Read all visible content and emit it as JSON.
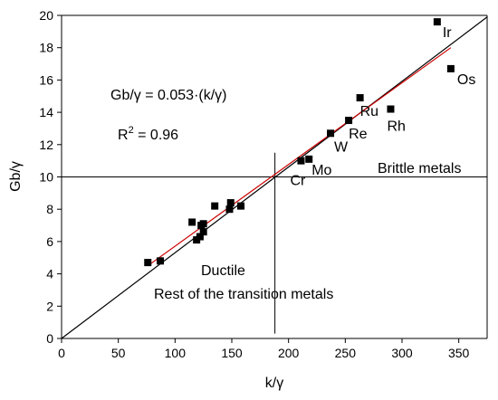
{
  "chart_data": {
    "type": "scatter",
    "xlabel": "k/γ",
    "ylabel": "Gb/γ",
    "xlim": [
      0,
      375
    ],
    "ylim": [
      0,
      20
    ],
    "xticks": [
      0,
      50,
      100,
      150,
      200,
      250,
      300,
      350
    ],
    "yticks": [
      0,
      2,
      4,
      6,
      8,
      10,
      12,
      14,
      16,
      18,
      20
    ],
    "grid": false,
    "points": [
      {
        "x": 76,
        "y": 4.7
      },
      {
        "x": 87,
        "y": 4.8
      },
      {
        "x": 115,
        "y": 7.2
      },
      {
        "x": 119,
        "y": 6.1
      },
      {
        "x": 122,
        "y": 6.3
      },
      {
        "x": 123,
        "y": 7.0
      },
      {
        "x": 125,
        "y": 6.6
      },
      {
        "x": 125,
        "y": 7.1
      },
      {
        "x": 135,
        "y": 8.2
      },
      {
        "x": 148,
        "y": 8.0
      },
      {
        "x": 149,
        "y": 8.4
      },
      {
        "x": 158,
        "y": 8.2
      },
      {
        "x": 211,
        "y": 11.0,
        "label": "Cr"
      },
      {
        "x": 218,
        "y": 11.1,
        "label": "Mo"
      },
      {
        "x": 237,
        "y": 12.7,
        "label": "W"
      },
      {
        "x": 253,
        "y": 13.5,
        "label": "Re"
      },
      {
        "x": 263,
        "y": 14.9,
        "label": "Ru"
      },
      {
        "x": 290,
        "y": 14.2,
        "label": "Rh"
      },
      {
        "x": 331,
        "y": 19.6,
        "label": "Ir"
      },
      {
        "x": 343,
        "y": 16.7,
        "label": "Os"
      }
    ],
    "lines": [
      {
        "color": "#000000",
        "x": [
          0,
          375
        ],
        "y": [
          0,
          19.9
        ]
      },
      {
        "color": "#cc0000",
        "x": [
          76,
          343
        ],
        "y": [
          4.5,
          18.0
        ]
      }
    ],
    "reference_lines": {
      "vertical_x": 188,
      "horizontal_y": 10
    },
    "annotations": {
      "equation": "Gb/γ = 0.053·(k/γ)",
      "r2_prefix": "R",
      "r2_sup": "2",
      "r2_suffix": " = 0.96",
      "brittle": "Brittle metals",
      "ductile": "Ductile",
      "rest": "Rest of the  transition metals"
    },
    "colors": {
      "markers": "#000000",
      "fit_line": "#cc0000",
      "reference": "#000000"
    }
  }
}
